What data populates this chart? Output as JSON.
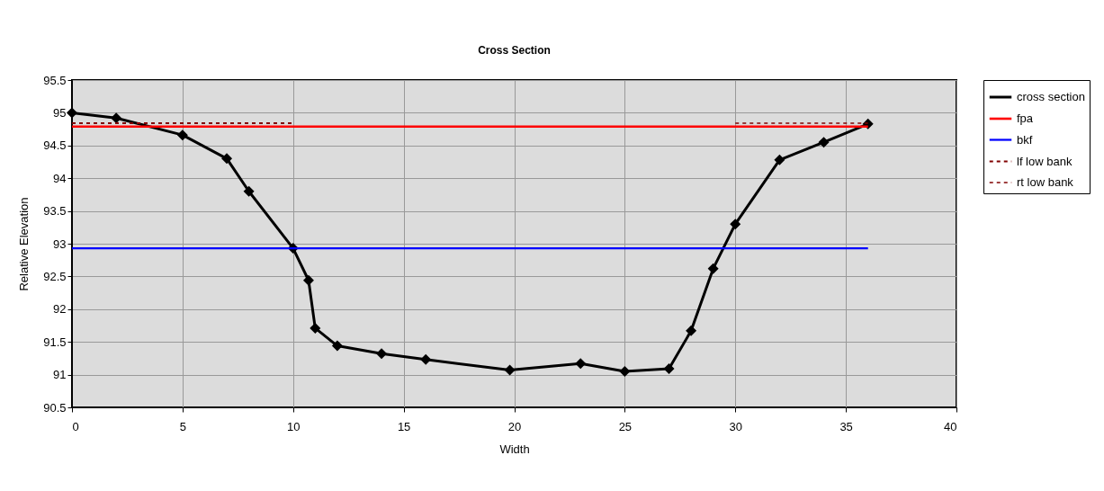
{
  "chart_data": {
    "type": "line",
    "title": "Cross Section",
    "xlabel": "Width",
    "ylabel": "Relative Elevation",
    "xlim": [
      0,
      40
    ],
    "xticks": [
      0,
      5,
      10,
      15,
      20,
      25,
      30,
      35,
      40
    ],
    "ylim": [
      90.5,
      95.5
    ],
    "yticks": [
      90.5,
      91,
      91.5,
      92,
      92.5,
      93,
      93.5,
      94,
      94.5,
      95,
      95.5
    ],
    "grid": true,
    "legend": "right",
    "series": [
      {
        "name": "cross section",
        "color": "#000000",
        "marker": "diamond",
        "line_style": "solid",
        "x": [
          0,
          2,
          5,
          7,
          8,
          10,
          10.7,
          11,
          12,
          14,
          16,
          19.8,
          23,
          25,
          27,
          28,
          29,
          30,
          32,
          34,
          36
        ],
        "values": [
          95.0,
          94.92,
          94.66,
          94.3,
          93.8,
          92.93,
          92.44,
          91.71,
          91.44,
          91.32,
          91.23,
          91.07,
          91.17,
          91.05,
          91.09,
          91.67,
          92.62,
          93.3,
          94.28,
          94.55,
          94.83
        ]
      },
      {
        "name": "fpa",
        "color": "#ff0000",
        "marker": "none",
        "line_style": "solid",
        "x": [
          0,
          36
        ],
        "values": [
          94.79,
          94.79
        ]
      },
      {
        "name": "bkf",
        "color": "#0000ff",
        "marker": "none",
        "line_style": "solid",
        "x": [
          0,
          36
        ],
        "values": [
          92.93,
          92.93
        ]
      },
      {
        "name": "lf low bank",
        "color": "#800000",
        "marker": "none",
        "line_style": "dashed",
        "x": [
          0,
          10
        ],
        "values": [
          94.84,
          94.84
        ]
      },
      {
        "name": "rt low bank",
        "color": "#800000",
        "marker": "none",
        "line_style": "dashed",
        "x": [
          30,
          36
        ],
        "values": [
          94.84,
          94.84
        ]
      }
    ]
  }
}
